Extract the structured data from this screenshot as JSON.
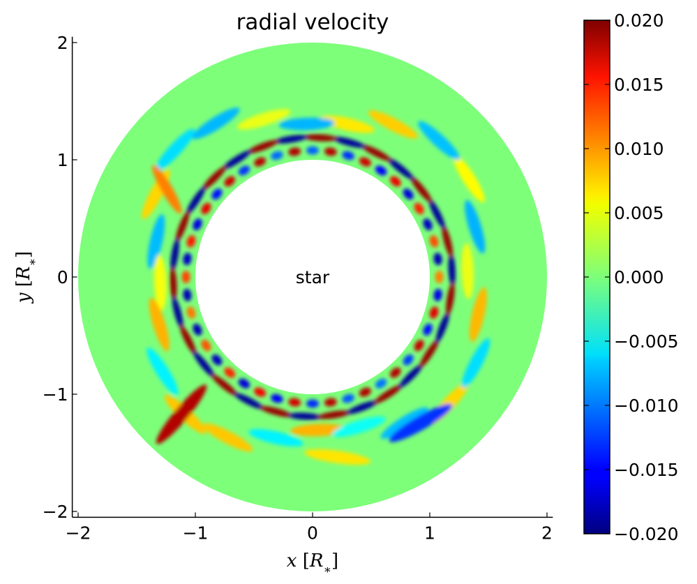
{
  "chart_data": {
    "type": "heatmap",
    "title": "radial velocity",
    "xlabel": "x [R_*]",
    "ylabel": "y [R_*]",
    "xlim": [
      -2.05,
      2.05
    ],
    "ylim": [
      -2.05,
      2.05
    ],
    "x_ticks": [
      -2,
      -1,
      0,
      1,
      2
    ],
    "y_ticks": [
      -2,
      -1,
      0,
      1,
      2
    ],
    "x_tick_labels": [
      "−2",
      "−1",
      "0",
      "1",
      "2"
    ],
    "y_tick_labels": [
      "−2",
      "−1",
      "0",
      "1",
      "2"
    ],
    "annotation": "star",
    "domain": {
      "shape": "annulus",
      "inner_radius": 1.0,
      "outer_radius": 2.0
    },
    "colorbar": {
      "colormap": "jet",
      "vmin": -0.02,
      "vmax": 0.02,
      "ticks": [
        0.02,
        0.015,
        0.01,
        0.005,
        0.0,
        -0.005,
        -0.01,
        -0.015,
        -0.02
      ],
      "tick_labels": [
        "0.020",
        "0.015",
        "0.010",
        "0.005",
        "0.000",
        "−0.005",
        "−0.010",
        "−0.015",
        "−0.020"
      ]
    },
    "grid": false
  },
  "colors": {
    "background_value_color": "#7dff7a",
    "axis_color": "#000000"
  }
}
